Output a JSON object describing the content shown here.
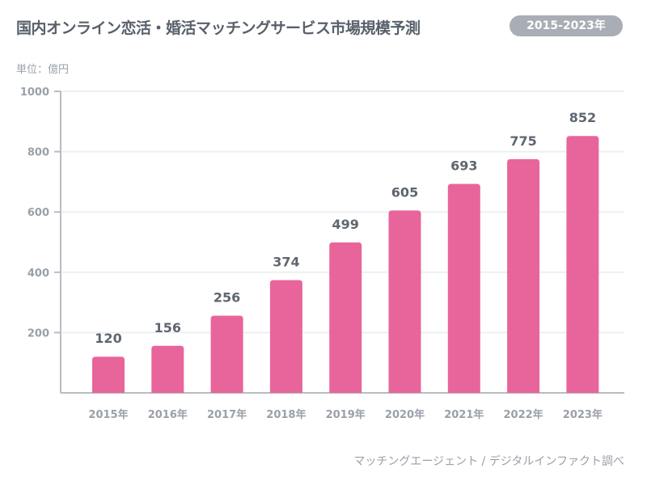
{
  "header": {
    "title": "国内オンライン恋活・婚活マッチングサービス市場規模予測",
    "period_badge": "2015-2023年"
  },
  "unit_label": "単位：億円",
  "source": "マッチングエージェント / デジタルインファクト調べ",
  "colors": {
    "bar": "#e8659b",
    "title": "#58606b",
    "tick": "#9aa0a8",
    "grid": "#eeeff1",
    "axis": "#b8bcc2"
  },
  "chart_data": {
    "type": "bar",
    "categories": [
      "2015年",
      "2016年",
      "2017年",
      "2018年",
      "2019年",
      "2020年",
      "2021年",
      "2022年",
      "2023年"
    ],
    "values": [
      120,
      156,
      256,
      374,
      499,
      605,
      693,
      775,
      852
    ],
    "yticks": [
      200,
      400,
      600,
      800,
      1000
    ],
    "ylim": [
      0,
      1000
    ],
    "grid": true,
    "data_labels": true
  }
}
